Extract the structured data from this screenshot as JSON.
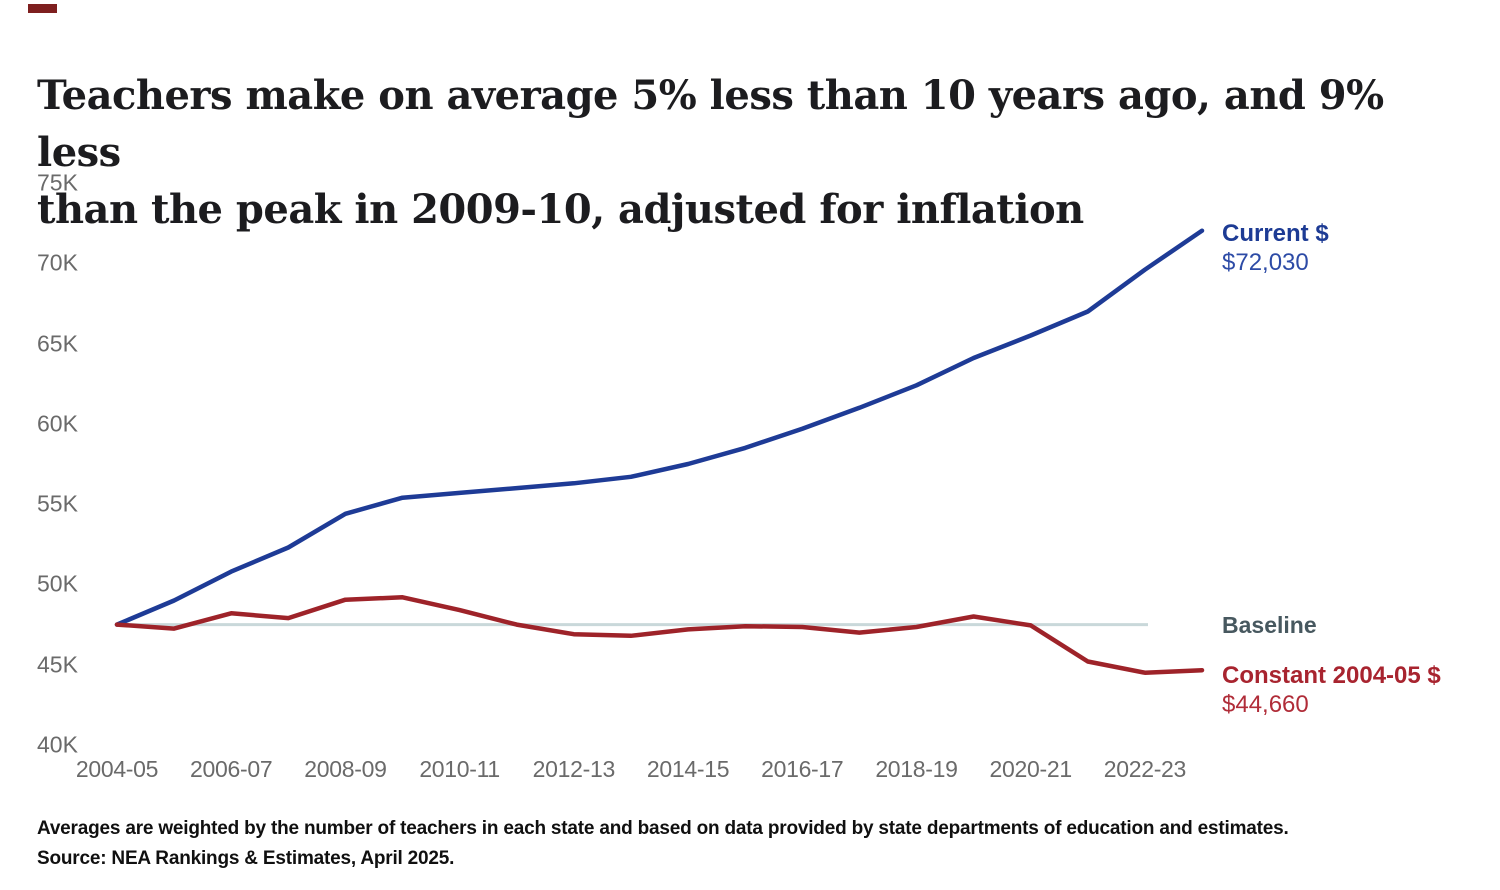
{
  "page": {
    "title_line1": "Teachers make on average 5% less than 10 years ago, and 9% less",
    "title_line2": "than the peak in 2009-10, adjusted for inflation",
    "footnote_line1": "Averages are weighted by the number of teachers in each state and based on data provided by state departments of education and estimates.",
    "footnote_line2": "Source: NEA Rankings & Estimates, April 2025."
  },
  "colors": {
    "current_line": "#1e3b96",
    "current_label": "#1d3b94",
    "constant_line": "#9e2329",
    "constant_label": "#a8242f",
    "baseline_line": "#c9d8da",
    "baseline_label": "#47585f",
    "axis_text": "#6a6a6a",
    "title_text": "#1c1c1f"
  },
  "chart_data": {
    "type": "line",
    "title": "Teachers make on average 5% less than 10 years ago, and 9% less than the peak in 2009-10, adjusted for inflation",
    "xlabel": "",
    "ylabel": "",
    "ylim": [
      40000,
      75000
    ],
    "grid": false,
    "legend_position": "right-of-line-ends",
    "x": [
      "2004-05",
      "2005-06",
      "2006-07",
      "2007-08",
      "2008-09",
      "2009-10",
      "2010-11",
      "2011-12",
      "2012-13",
      "2013-14",
      "2014-15",
      "2015-16",
      "2016-17",
      "2017-18",
      "2018-19",
      "2019-20",
      "2020-21",
      "2021-22",
      "2022-23",
      "2023-24"
    ],
    "x_tick_labels": [
      "2004-05",
      "2006-07",
      "2008-09",
      "2010-11",
      "2012-13",
      "2014-15",
      "2016-17",
      "2018-19",
      "2020-21",
      "2022-23"
    ],
    "y_tick_labels": [
      "75K",
      "70K",
      "65K",
      "60K",
      "55K",
      "50K",
      "45K",
      "40K"
    ],
    "y_tick_values": [
      75000,
      70000,
      65000,
      60000,
      55000,
      50000,
      45000,
      40000
    ],
    "series": [
      {
        "name": "Current $",
        "slug": "current-dollars",
        "color": "#1e3b96",
        "values": [
          47500,
          49000,
          50800,
          52300,
          54400,
          55400,
          55700,
          56000,
          56300,
          56700,
          57500,
          58500,
          59700,
          61000,
          62400,
          64100,
          65500,
          67000,
          69600,
          72030
        ]
      },
      {
        "name": "Constant 2004-05 $",
        "slug": "constant-2004-05-dollars",
        "color": "#9e2329",
        "values": [
          47500,
          47250,
          48200,
          47900,
          49050,
          49200,
          48400,
          47500,
          46900,
          46800,
          47200,
          47400,
          47350,
          47000,
          47350,
          48000,
          47450,
          45200,
          44500,
          44660
        ]
      }
    ],
    "baseline": {
      "label": "Baseline",
      "value": 47500,
      "color": "#c9d8da"
    },
    "labels": {
      "current_name": "Current $",
      "current_value": "$72,030",
      "baseline": "Baseline",
      "constant_name": "Constant 2004-05 $",
      "constant_value": "$44,660"
    }
  }
}
